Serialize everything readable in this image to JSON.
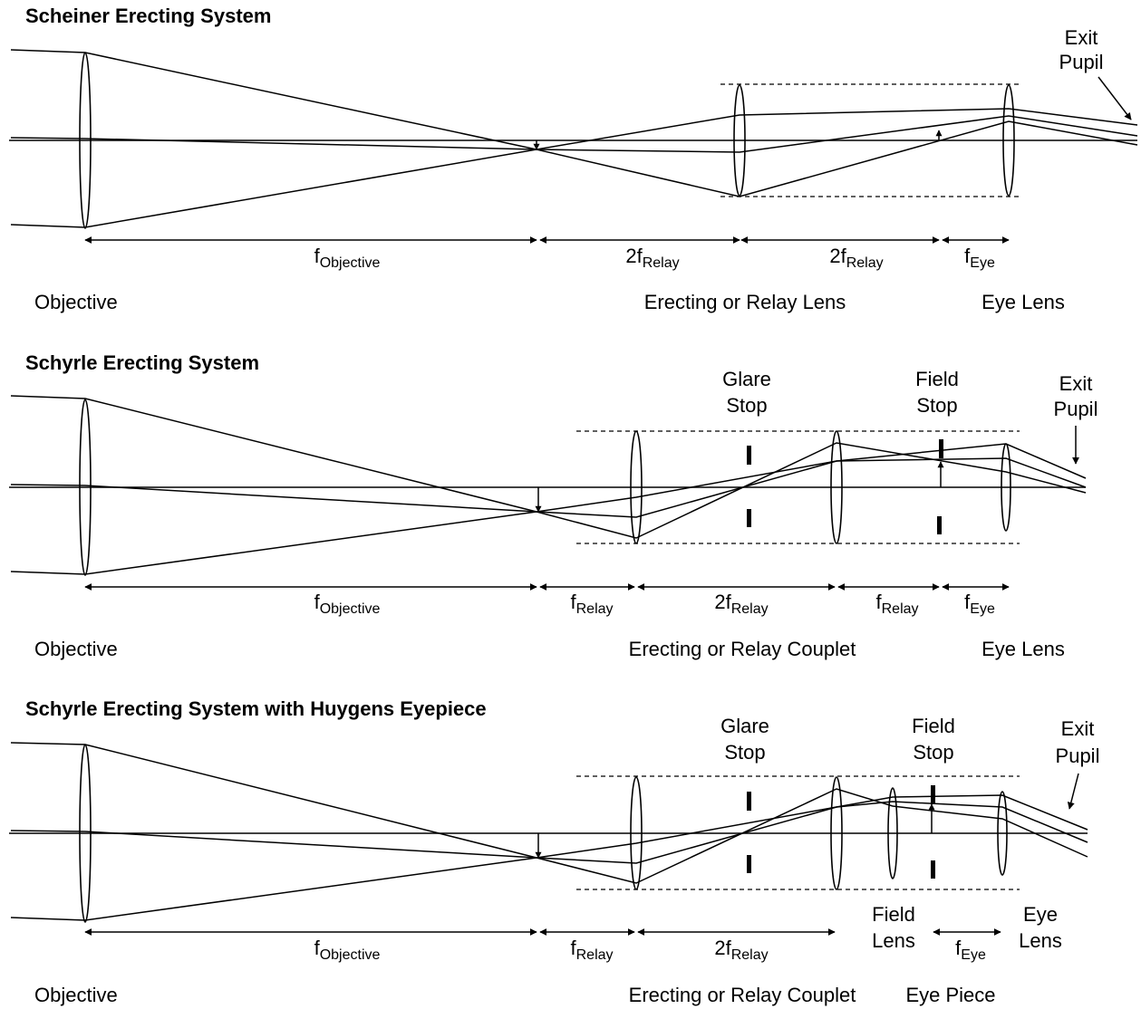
{
  "panels": {
    "scheiner": {
      "title": "Scheiner Erecting System",
      "exit_pupil": [
        "Exit",
        "Pupil"
      ],
      "dims": [
        {
          "main": "f",
          "sub": "Objective"
        },
        {
          "main": "2f",
          "sub": "Relay"
        },
        {
          "main": "2f",
          "sub": "Relay"
        },
        {
          "main": "f",
          "sub": "Eye"
        }
      ],
      "bottom_labels": [
        "Objective",
        "Erecting or Relay Lens",
        "Eye Lens"
      ]
    },
    "schyrle": {
      "title": "Schyrle Erecting System",
      "glare_stop": [
        "Glare",
        "Stop"
      ],
      "field_stop": [
        "Field",
        "Stop"
      ],
      "exit_pupil": [
        "Exit",
        "Pupil"
      ],
      "dims": [
        {
          "main": "f",
          "sub": "Objective"
        },
        {
          "main": "f",
          "sub": "Relay"
        },
        {
          "main": "2f",
          "sub": "Relay"
        },
        {
          "main": "f",
          "sub": "Relay"
        },
        {
          "main": "f",
          "sub": "Eye"
        }
      ],
      "bottom_labels": [
        "Objective",
        "Erecting or Relay Couplet",
        "Eye Lens"
      ]
    },
    "huygens": {
      "title": "Schyrle Erecting System with Huygens Eyepiece",
      "glare_stop": [
        "Glare",
        "Stop"
      ],
      "field_stop": [
        "Field",
        "Stop"
      ],
      "exit_pupil": [
        "Exit",
        "Pupil"
      ],
      "field_lens": [
        "Field",
        "Lens"
      ],
      "eye_lens": [
        "Eye",
        "Lens"
      ],
      "dims": [
        {
          "main": "f",
          "sub": "Objective"
        },
        {
          "main": "f",
          "sub": "Relay"
        },
        {
          "main": "2f",
          "sub": "Relay"
        },
        {
          "main": "f",
          "sub": "Eye"
        }
      ],
      "bottom_labels": [
        "Objective",
        "Erecting or Relay Couplet",
        "Eye Piece"
      ]
    }
  }
}
